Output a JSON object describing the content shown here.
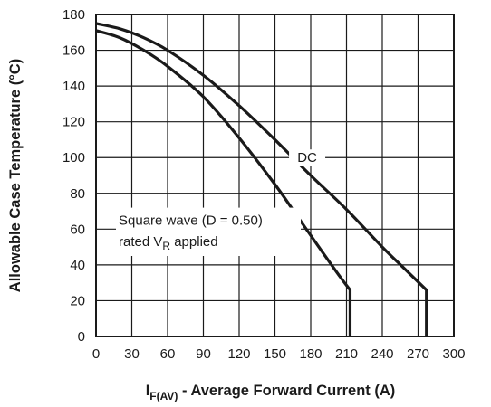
{
  "chart_data": {
    "type": "line",
    "xlabel": {
      "prefix": "I",
      "subscript": "F(AV)",
      "text": " - Average Forward Current (A)"
    },
    "ylabel": "Allowable Case Temperature (°C)",
    "xlim": [
      0,
      300
    ],
    "ylim": [
      0,
      180
    ],
    "x_ticks": [
      0,
      30,
      60,
      90,
      120,
      150,
      180,
      210,
      240,
      270,
      300
    ],
    "y_ticks": [
      0,
      20,
      40,
      60,
      80,
      100,
      120,
      140,
      160,
      180
    ],
    "grid": true,
    "series": [
      {
        "name": "DC",
        "x": [
          0,
          20,
          40,
          60,
          90,
          120,
          150,
          180,
          210,
          240,
          260,
          277,
          277
        ],
        "y": [
          175,
          172,
          167,
          160,
          146,
          129,
          110,
          90,
          71,
          50,
          37,
          26,
          0
        ]
      },
      {
        "name": "Square wave (D = 0.50)",
        "x": [
          0,
          20,
          40,
          60,
          90,
          120,
          150,
          170,
          190,
          205,
          213,
          213
        ],
        "y": [
          171,
          167,
          160,
          151,
          134,
          111,
          85,
          66,
          47,
          33,
          26,
          0
        ]
      }
    ],
    "annotations": {
      "dc": "DC",
      "square_line1": "Square wave (D = 0.50)",
      "square_line2_prefix": "rated V",
      "square_line2_sub": "R",
      "square_line2_suffix": " applied"
    },
    "colors": {
      "line": "#1a1a1a",
      "grid": "#1a1a1a",
      "background": "#ffffff"
    }
  }
}
